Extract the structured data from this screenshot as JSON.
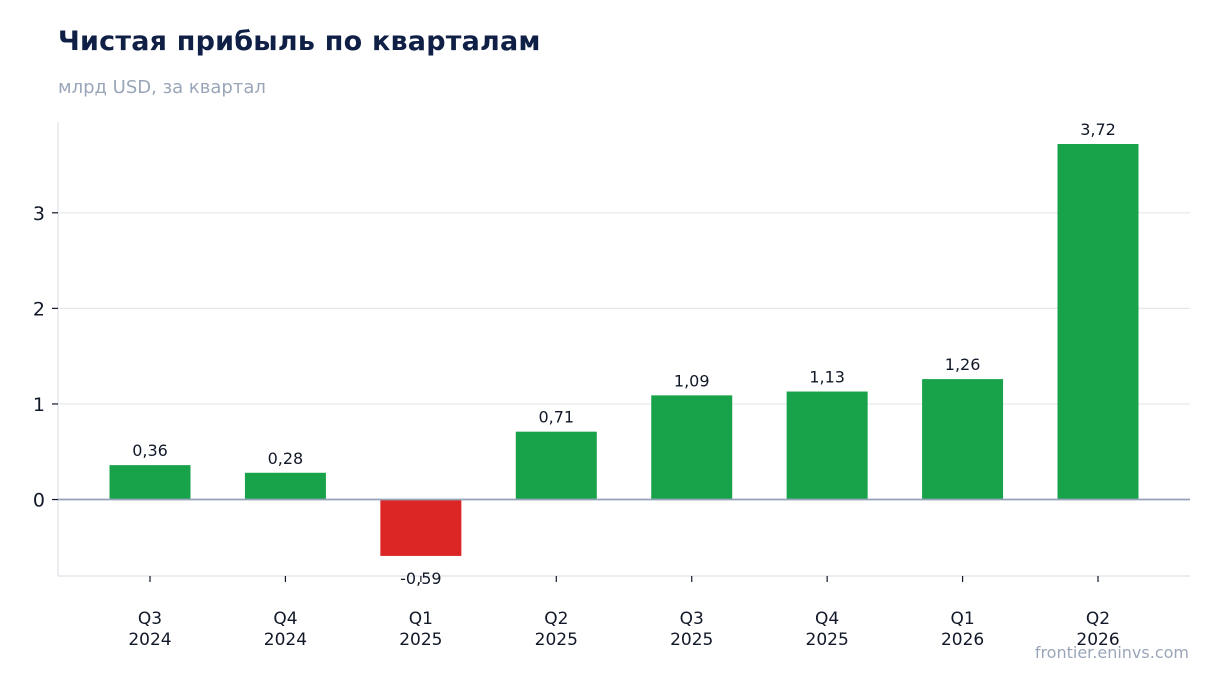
{
  "title": "Чистая прибыль по кварталам",
  "subtitle": "млрд USD, за квартал",
  "watermark": "frontier.eninvs.com",
  "colors": {
    "positive": "#18a34a",
    "negative": "#dc2626",
    "grid": "#e5e7eb",
    "zero_line": "#94a3b8",
    "text": "#111827"
  },
  "chart_data": {
    "type": "bar",
    "categories": [
      "Q3\n2024",
      "Q4\n2024",
      "Q1\n2025",
      "Q2\n2025",
      "Q3\n2025",
      "Q4\n2025",
      "Q1\n2026",
      "Q2\n2026"
    ],
    "values": [
      0.36,
      0.28,
      -0.59,
      0.71,
      1.09,
      1.13,
      1.26,
      3.72
    ],
    "value_labels": [
      "0,36",
      "0,28",
      "-0,59",
      "0,71",
      "1,09",
      "1,13",
      "1,26",
      "3,72"
    ],
    "yticks": [
      0,
      1,
      2,
      3
    ],
    "ylim": [
      -0.8,
      3.95
    ],
    "grid": true
  }
}
